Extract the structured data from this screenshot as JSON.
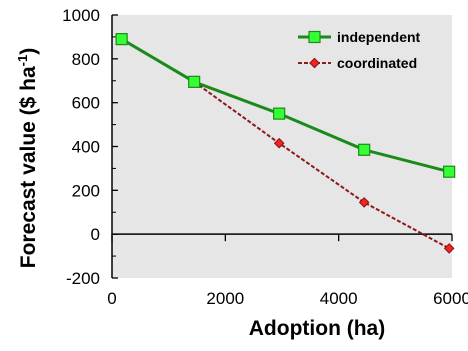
{
  "chart_data": {
    "type": "line",
    "xlabel": "Adoption (ha)",
    "ylabel_main": "Forecast value ($ ha",
    "ylabel_sup": "-1",
    "ylabel_close": ")",
    "xlim": [
      0,
      6000
    ],
    "ylim": [
      -200,
      1000
    ],
    "xticks": [
      0,
      2000,
      4000,
      6000
    ],
    "xtick_labels": [
      "0",
      "2000",
      "4000",
      "6000"
    ],
    "yticks": [
      -200,
      0,
      200,
      400,
      600,
      800,
      1000
    ],
    "ytick_labels": [
      "-200",
      "0",
      "200",
      "400",
      "600",
      "800",
      "1000"
    ],
    "x_axis_at_y": 0,
    "grid": false,
    "plot_background": "#e6e6e6",
    "legend_position": "top-right",
    "series": [
      {
        "name": "independent",
        "color": "#1a8a1a",
        "marker": "square",
        "marker_color": "#33ff33",
        "line_style": "solid",
        "x": [
          170,
          1450,
          2950,
          4450,
          5950
        ],
        "y": [
          890,
          695,
          550,
          385,
          285
        ]
      },
      {
        "name": "coordinated",
        "color": "#8b1a1a",
        "marker": "diamond",
        "marker_color": "#ff2020",
        "line_style": "dashed",
        "x": [
          170,
          1450,
          2950,
          4450,
          5950
        ],
        "y": [
          890,
          695,
          415,
          145,
          -65
        ]
      }
    ]
  }
}
